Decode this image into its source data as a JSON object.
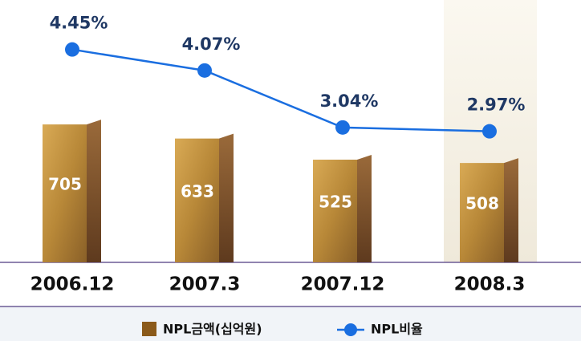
{
  "chart_data": {
    "type": "bar-line",
    "categories": [
      "2006.12",
      "2007.3",
      "2007.12",
      "2008.3"
    ],
    "series": [
      {
        "name": "NPL금액(십억원)",
        "type": "bar",
        "color": "#8b5a1a",
        "values": [
          705,
          633,
          525,
          508
        ],
        "value_labels": [
          "705",
          "633",
          "525",
          "508"
        ]
      },
      {
        "name": "NPL비율",
        "type": "line",
        "axis": "y2",
        "color": "#1a6ee0",
        "values": [
          4.45,
          4.07,
          3.04,
          2.97
        ],
        "value_labels": [
          "4.45%",
          "4.07%",
          "3.04%",
          "2.97%"
        ]
      }
    ],
    "ylim": [
      0,
      1300
    ],
    "y2lim": [
      0.6,
      5.2
    ],
    "legend": "bottom"
  }
}
